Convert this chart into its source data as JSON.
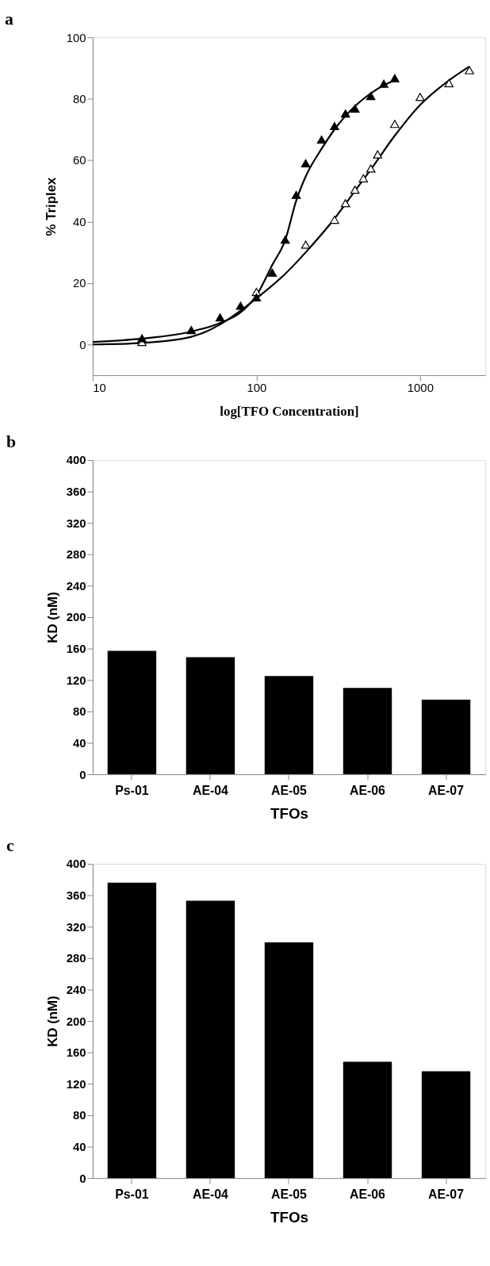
{
  "chart_data": [
    {
      "type": "scatter",
      "title": "a",
      "xlabel": "log[TFO Concentration]",
      "ylabel": "% Triplex",
      "log": "x",
      "xlim": [
        10,
        2500
      ],
      "xticks": [
        10,
        100,
        1000
      ],
      "ylim": [
        -10,
        100
      ],
      "yticks": [
        0,
        20,
        40,
        60,
        80,
        100
      ],
      "marker": "triangle",
      "grid": false,
      "series": [
        {
          "type": "line",
          "color": "#000000",
          "line_style": "solid",
          "marker": "none",
          "x": [
            10,
            20,
            40,
            60,
            80,
            100,
            125,
            150,
            175,
            200,
            250,
            300,
            400,
            500,
            600,
            700
          ],
          "values": [
            0.8,
            1.9,
            4.2,
            7,
            10.4,
            15.9,
            25.9,
            34,
            46.8,
            54.7,
            63.7,
            70,
            77.6,
            81.8,
            84.4,
            86
          ]
        },
        {
          "type": "line",
          "color": "#000000",
          "line_style": "solid",
          "marker": "none",
          "x": [
            10,
            20,
            40,
            60,
            80,
            100,
            150,
            200,
            300,
            400,
            500,
            700,
            1000,
            1500,
            2000
          ],
          "values": [
            0,
            0.5,
            2.5,
            6.5,
            11,
            15,
            23,
            30,
            41,
            50,
            57,
            68,
            78,
            86,
            90.5
          ]
        },
        {
          "type": "scatter",
          "color": "#ffffff",
          "x": [
            20,
            100,
            200,
            300,
            350,
            400,
            450,
            500,
            550,
            700,
            1000,
            1500,
            2000
          ],
          "values": [
            0.8,
            17.1,
            32.5,
            40.6,
            46,
            50.4,
            54.1,
            57.3,
            61.9,
            71.8,
            80.6,
            85.1,
            89.3
          ]
        },
        {
          "type": "scatter",
          "color": "#000000",
          "x": [
            20,
            40,
            60,
            80,
            100,
            125,
            150,
            175,
            200,
            250,
            300,
            350,
            400,
            500,
            600,
            700
          ],
          "values": [
            2,
            4.7,
            8.8,
            12.6,
            15.3,
            23.4,
            34.1,
            48.7,
            59,
            66.7,
            71.1,
            75.2,
            76.8,
            80.9,
            84.9,
            86.7
          ]
        }
      ]
    },
    {
      "type": "bar",
      "title": "b",
      "xlabel": "TFOs",
      "ylabel": "KD (nM)",
      "categories": [
        "Ps-01",
        "AE-04",
        "AE-05",
        "AE-06",
        "AE-07"
      ],
      "values": [
        157,
        149,
        125,
        110,
        95
      ],
      "color": "#000000",
      "ylim": [
        0,
        400
      ],
      "yticks": [
        0,
        40,
        80,
        120,
        160,
        200,
        240,
        280,
        320,
        360,
        400
      ],
      "grid": false
    },
    {
      "type": "bar",
      "title": "c",
      "xlabel": "TFOs",
      "ylabel": "KD (nM)",
      "categories": [
        "Ps-01",
        "AE-04",
        "AE-05",
        "AE-06",
        "AE-07"
      ],
      "values": [
        376,
        353,
        300,
        148,
        136
      ],
      "color": "#000000",
      "ylim": [
        0,
        400
      ],
      "yticks": [
        0,
        40,
        80,
        120,
        160,
        200,
        240,
        280,
        320,
        360,
        400
      ],
      "grid": false
    }
  ]
}
